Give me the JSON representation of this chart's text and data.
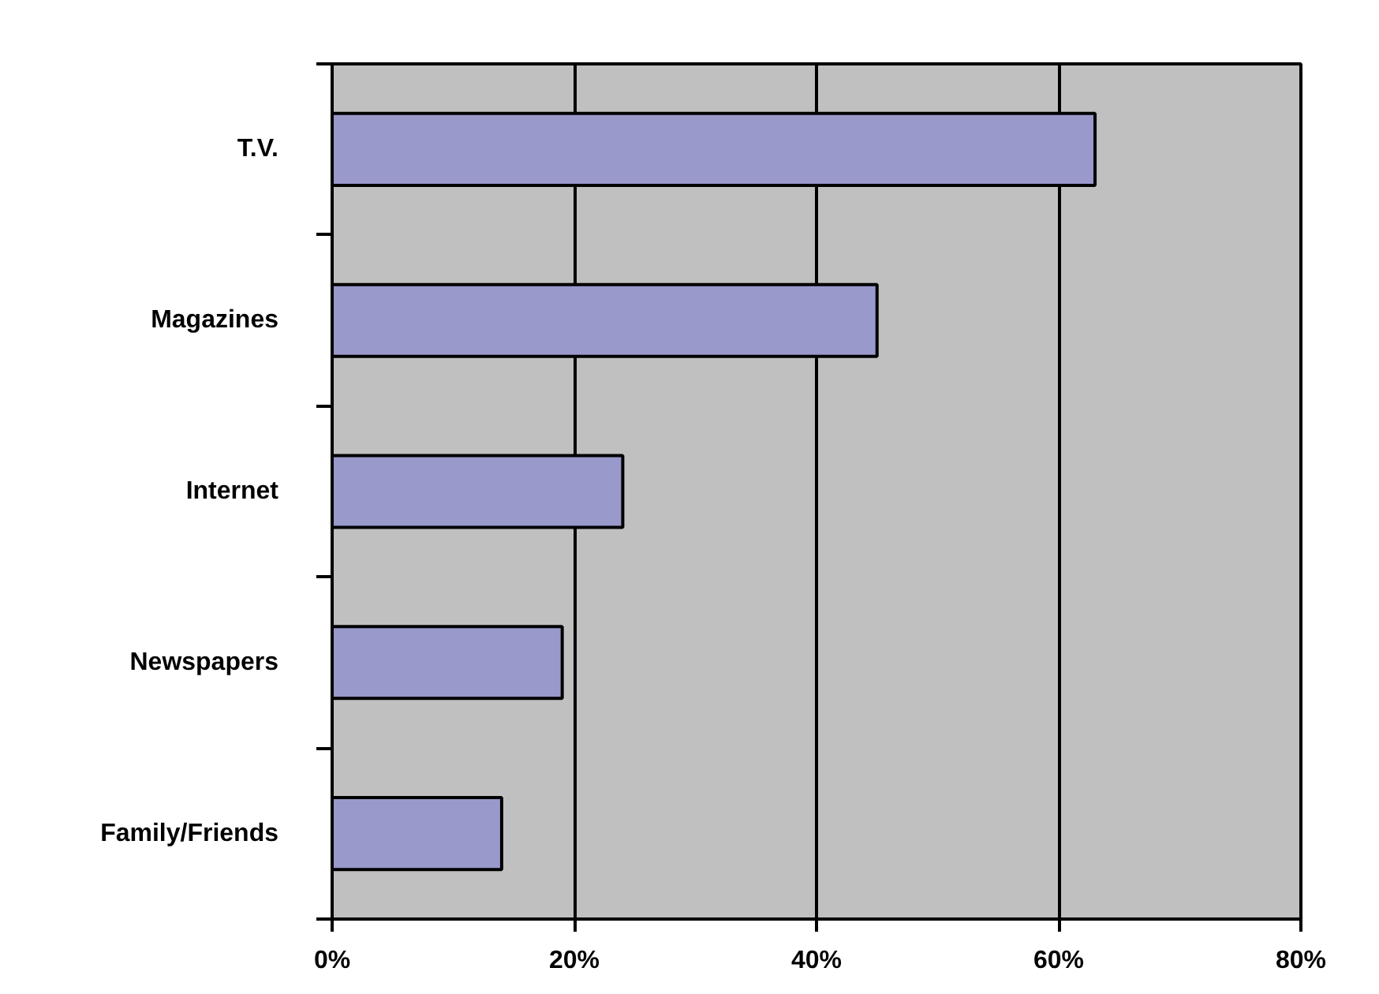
{
  "chart_data": {
    "type": "bar",
    "orientation": "horizontal",
    "categories": [
      "T.V.",
      "Magazines",
      "Internet",
      "Newspapers",
      "Family/Friends"
    ],
    "values": [
      63,
      45,
      24,
      19,
      14
    ],
    "color": "#9999cc",
    "xlim": [
      0,
      80
    ],
    "xticks": [
      {
        "value": 0,
        "label": "0%"
      },
      {
        "value": 20,
        "label": "20%"
      },
      {
        "value": 40,
        "label": "40%"
      },
      {
        "value": 60,
        "label": "60%"
      },
      {
        "value": 80,
        "label": "80%"
      }
    ],
    "grid": "x"
  }
}
